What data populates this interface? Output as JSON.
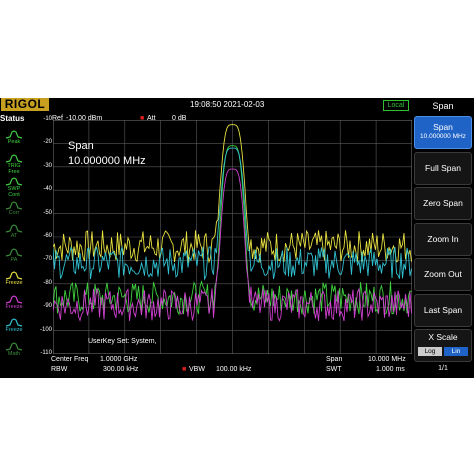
{
  "header": {
    "logo": "RIGOL",
    "datetime": "19:08:50 2021-02-03",
    "local_badge": "Local"
  },
  "status": {
    "title": "Status",
    "items": [
      {
        "label": "Peak",
        "icon": "peak-icon",
        "color": "#3fd03f"
      },
      {
        "label": "TRIG\nFree",
        "icon": "trig-icon",
        "color": "#3fd03f"
      },
      {
        "label": "SWP\nCont",
        "icon": "sweep-icon",
        "color": "#3fd03f"
      },
      {
        "label": "Corr",
        "icon": "corr-icon",
        "color": "#3a8a3a"
      },
      {
        "label": "AT",
        "icon": "at-icon",
        "color": "#3a8a3a"
      },
      {
        "label": "PA",
        "icon": "pa-icon",
        "color": "#3a8a3a"
      },
      {
        "label": "Freeze",
        "icon": "freeze-trace-icon",
        "color": "#e6e040"
      },
      {
        "label": "Freeze",
        "icon": "freeze-trace-icon",
        "color": "#d040d0"
      },
      {
        "label": "Freeze",
        "icon": "freeze-trace-icon",
        "color": "#30c0d0"
      },
      {
        "label": "Math",
        "icon": "math-icon",
        "color": "#3a8a3a"
      }
    ]
  },
  "measure": {
    "ref_label": "Ref",
    "ref_value": "-10.00 dBm",
    "att_label": "Att",
    "att_value": "0 dB",
    "span_overlay_label": "Span",
    "span_overlay_value": "10.000000 MHz",
    "userkey": "UserKey Set:   System,",
    "center_freq_label": "Center Freq",
    "center_freq_value": "1.0000 GHz",
    "rbw_label": "RBW",
    "rbw_value": "300.00 kHz",
    "vbw_label": "VBW",
    "vbw_value": "100.00 kHz",
    "span_label": "Span",
    "span_value": "10.000 MHz",
    "swt_label": "SWT",
    "swt_value": "1.000 ms"
  },
  "chart_data": {
    "type": "line",
    "ytick_labels": [
      "-10",
      "-20",
      "-30",
      "-40",
      "-50",
      "-60",
      "-70",
      "-80",
      "-90",
      "-100",
      "-110"
    ],
    "ylim": [
      -110,
      -10
    ],
    "xlim": [
      995,
      1005
    ],
    "x_unit": "MHz",
    "grid": true,
    "series": [
      {
        "color": "#e6e040",
        "peak_dbm": -12,
        "floor_dbm": -64
      },
      {
        "color": "#3fd03f",
        "peak_dbm": -21,
        "floor_dbm": -86
      },
      {
        "color": "#30c0d0",
        "peak_dbm": -22,
        "floor_dbm": -71
      },
      {
        "color": "#d040d0",
        "peak_dbm": -31,
        "floor_dbm": -89
      }
    ]
  },
  "softmenu": {
    "title": "Span",
    "buttons": [
      {
        "label": "Span",
        "sub": "10.000000 MHz",
        "active": true
      },
      {
        "label": "Full Span",
        "sub": ""
      },
      {
        "label": "Zero Span",
        "sub": ""
      },
      {
        "label": "Zoom In",
        "sub": ""
      },
      {
        "label": "Zoom Out",
        "sub": ""
      },
      {
        "label": "Last Span",
        "sub": ""
      },
      {
        "label": "X Scale",
        "sub": ""
      }
    ],
    "xscale_log": "Log",
    "xscale_lin": "Lin",
    "pager": "1/1"
  }
}
